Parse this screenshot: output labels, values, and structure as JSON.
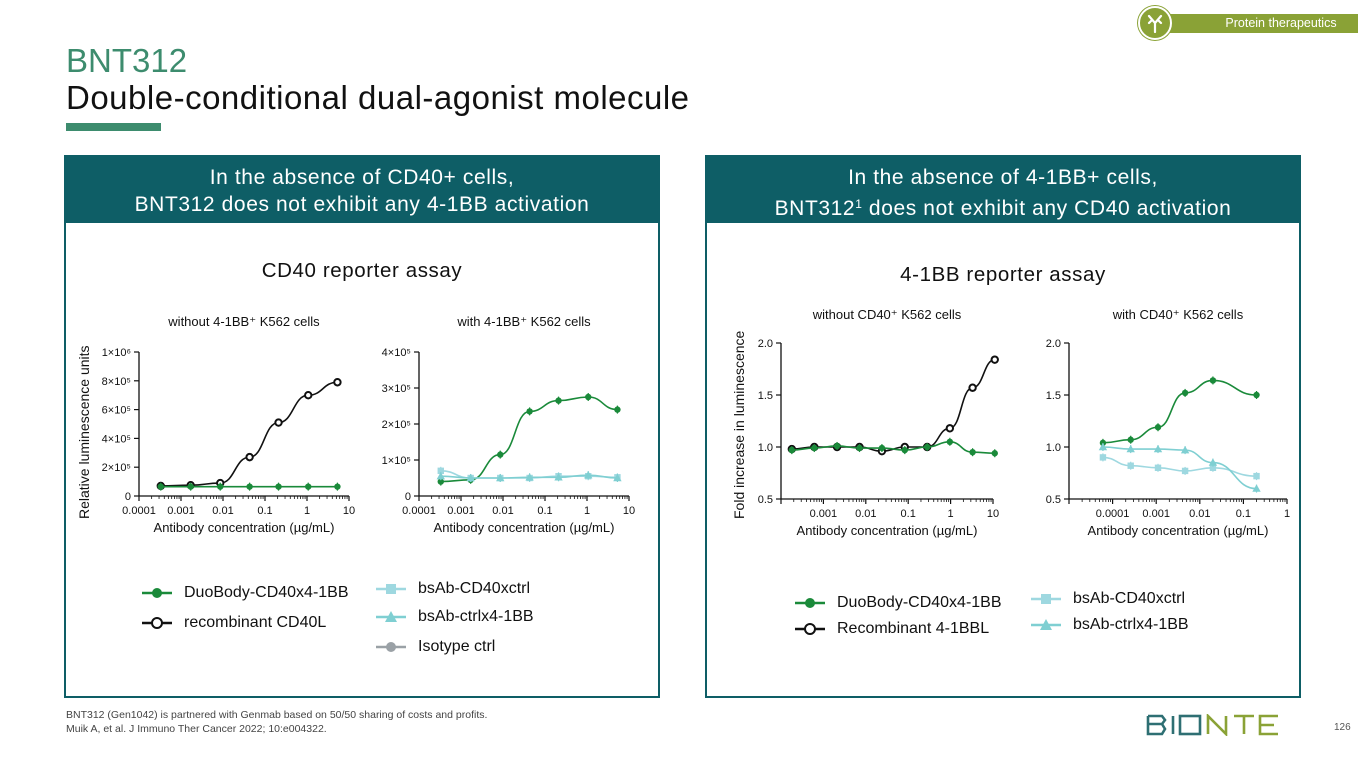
{
  "header": {
    "tag": "Protein therapeutics",
    "title": "BNT312",
    "subtitle": "Double-conditional dual-agonist molecule"
  },
  "panels": [
    {
      "heading_line1": "In the absence of CD40+ cells,",
      "heading_line2": "BNT312 does not exhibit any 4-1BB activation",
      "assay_title": "CD40 reporter assay",
      "ylabel": "Relative luminescence units",
      "legend": [
        {
          "label": "DuoBody-CD40x4-1BB",
          "color": "#1a8a3a",
          "marker": "circle-filled"
        },
        {
          "label": "recombinant CD40L",
          "color": "#111111",
          "marker": "circle-open"
        },
        {
          "label": "bsAb-CD40xctrl",
          "color": "#9ed8e0",
          "marker": "square"
        },
        {
          "label": "bsAb-ctrlx4-1BB",
          "color": "#7fcfd2",
          "marker": "triangle"
        },
        {
          "label": "Isotype ctrl",
          "color": "#9aa1a6",
          "marker": "circle-filled"
        }
      ]
    },
    {
      "heading_line1": "In the absence of 4-1BB+ cells,",
      "heading_line2a": "BNT312",
      "heading_sup": "1",
      "heading_line2b": " does not exhibit any CD40 activation",
      "assay_title": "4-1BB reporter assay",
      "ylabel": "Fold increase in luminescence",
      "legend": [
        {
          "label": "DuoBody-CD40x4-1BB",
          "color": "#1a8a3a",
          "marker": "circle-filled"
        },
        {
          "label": "Recombinant 4-1BBL",
          "color": "#111111",
          "marker": "circle-open"
        },
        {
          "label": "bsAb-CD40xctrl",
          "color": "#9ed8e0",
          "marker": "square"
        },
        {
          "label": "bsAb-ctrlx4-1BB",
          "color": "#7fcfd2",
          "marker": "triangle"
        }
      ]
    }
  ],
  "footer": {
    "note1": "BNT312 (Gen1042) is partnered with Genmab based on 50/50 sharing of costs and profits.",
    "note2": "Muik A, et al. J Immuno Ther Cancer 2022; 10:e004322.",
    "logo": "BIONTECH",
    "page": "126"
  },
  "chart_data": [
    {
      "type": "scatter",
      "title": "without 4-1BB⁺ K562 cells",
      "xlabel": "Antibody concentration (µg/mL)",
      "ylabel": "Relative luminescence units",
      "xscale": "log",
      "xlim": [
        0.0001,
        10
      ],
      "ylim": [
        0,
        1000000
      ],
      "xticks": [
        "0.0001",
        "0.001",
        "0.01",
        "0.1",
        "1",
        "10"
      ],
      "yticks": [
        "0",
        "2×10⁵",
        "4×10⁵",
        "6×10⁵",
        "8×10⁵",
        "1×10⁶"
      ],
      "series": [
        {
          "name": "recombinant CD40L",
          "color": "#111111",
          "marker": "circle-open",
          "x": [
            0.00033,
            0.0017,
            0.0086,
            0.043,
            0.21,
            1.07,
            5.3
          ],
          "y": [
            70000,
            75000,
            90000,
            270000,
            510000,
            700000,
            790000
          ]
        },
        {
          "name": "DuoBody-CD40x4-1BB",
          "color": "#1a8a3a",
          "marker": "circle-filled",
          "x": [
            0.00033,
            0.0017,
            0.0086,
            0.043,
            0.21,
            1.07,
            5.3
          ],
          "y": [
            65000,
            65000,
            65000,
            65000,
            65000,
            65000,
            65000
          ]
        }
      ]
    },
    {
      "type": "scatter",
      "title": "with 4-1BB⁺ K562 cells",
      "xlabel": "Antibody concentration (µg/mL)",
      "xscale": "log",
      "xlim": [
        0.0001,
        10
      ],
      "ylim": [
        0,
        400000
      ],
      "xticks": [
        "0.0001",
        "0.001",
        "0.01",
        "0.1",
        "1",
        "10"
      ],
      "yticks": [
        "0",
        "1×10⁵",
        "2×10⁵",
        "3×10⁵",
        "4×10⁵"
      ],
      "series": [
        {
          "name": "DuoBody-CD40x4-1BB",
          "color": "#1a8a3a",
          "marker": "circle-filled",
          "x": [
            0.00033,
            0.0017,
            0.0086,
            0.043,
            0.21,
            1.07,
            5.3
          ],
          "y": [
            40000,
            45000,
            115000,
            235000,
            265000,
            275000,
            240000
          ]
        },
        {
          "name": "bsAb-CD40xctrl",
          "color": "#9ed8e0",
          "marker": "square",
          "x": [
            0.00033,
            0.0017,
            0.0086,
            0.043,
            0.21,
            1.07,
            5.3
          ],
          "y": [
            70000,
            50000,
            50000,
            50000,
            55000,
            55000,
            52000
          ]
        },
        {
          "name": "bsAb-ctrlx4-1BB",
          "color": "#7fcfd2",
          "marker": "triangle",
          "x": [
            0.00033,
            0.0017,
            0.0086,
            0.043,
            0.21,
            1.07,
            5.3
          ],
          "y": [
            55000,
            50000,
            50000,
            52000,
            52000,
            58000,
            50000
          ]
        }
      ]
    },
    {
      "type": "scatter",
      "title": "without CD40⁺ K562 cells",
      "xlabel": "Antibody concentration (µg/mL)",
      "ylabel": "Fold increase in luminescence",
      "xscale": "log",
      "xlim": [
        0.0001,
        10
      ],
      "ylim": [
        0.5,
        2.0
      ],
      "xticks": [
        "0.001",
        "0.01",
        "0.1",
        "1",
        "10"
      ],
      "yticks": [
        "0.5",
        "1.0",
        "1.5",
        "2.0"
      ],
      "series": [
        {
          "name": "Recombinant 4-1BBL",
          "color": "#111111",
          "marker": "circle-open",
          "x": [
            0.00018,
            0.00061,
            0.0021,
            0.0071,
            0.024,
            0.083,
            0.28,
            0.96,
            3.3,
            11
          ],
          "y": [
            0.98,
            1.0,
            1.0,
            1.0,
            0.96,
            1.0,
            1.0,
            1.18,
            1.57,
            1.84
          ]
        },
        {
          "name": "DuoBody-CD40x4-1BB",
          "color": "#1a8a3a",
          "marker": "circle-filled",
          "x": [
            0.00018,
            0.00061,
            0.0021,
            0.0071,
            0.024,
            0.083,
            0.28,
            0.96,
            3.3,
            11
          ],
          "y": [
            0.97,
            0.99,
            1.01,
            0.99,
            0.99,
            0.97,
            1.0,
            1.05,
            0.95,
            0.94
          ]
        }
      ]
    },
    {
      "type": "scatter",
      "title": "with CD40⁺ K562 cells",
      "xlabel": "Antibody concentration (µg/mL)",
      "xscale": "log",
      "xlim": [
        1e-05,
        1
      ],
      "ylim": [
        0.5,
        2.0
      ],
      "xticks": [
        "0.0001",
        "0.001",
        "0.01",
        "0.1",
        "1"
      ],
      "yticks": [
        "0.5",
        "1.0",
        "1.5",
        "2.0"
      ],
      "series": [
        {
          "name": "DuoBody-CD40x4-1BB",
          "color": "#1a8a3a",
          "marker": "circle-filled",
          "x": [
            6e-05,
            0.00026,
            0.0011,
            0.0046,
            0.02,
            0.2
          ],
          "y": [
            1.04,
            1.07,
            1.19,
            1.52,
            1.64,
            1.5
          ]
        },
        {
          "name": "bsAb-CD40xctrl",
          "color": "#9ed8e0",
          "marker": "square",
          "x": [
            6e-05,
            0.00026,
            0.0011,
            0.0046,
            0.02,
            0.2
          ],
          "y": [
            0.9,
            0.82,
            0.8,
            0.77,
            0.8,
            0.72
          ]
        },
        {
          "name": "bsAb-ctrlx4-1BB",
          "color": "#7fcfd2",
          "marker": "triangle",
          "x": [
            6e-05,
            0.00026,
            0.0011,
            0.0046,
            0.02,
            0.2
          ],
          "y": [
            1.0,
            0.98,
            0.98,
            0.97,
            0.85,
            0.6
          ]
        }
      ]
    }
  ]
}
